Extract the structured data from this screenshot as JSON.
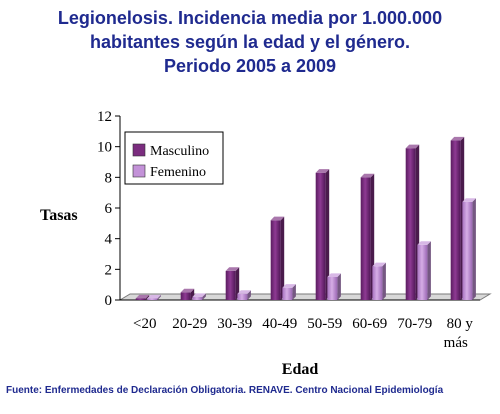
{
  "chart_data": {
    "type": "bar",
    "title": [
      "Legionelosis. Incidencia media por 1.000.000",
      "habitantes según la edad y el género.",
      "Periodo 2005 a 2009"
    ],
    "xlabel": "Edad",
    "ylabel": "Tasas",
    "categories": [
      "<20",
      "20-29",
      "30-39",
      "40-49",
      "50-59",
      "60-69",
      "70-79",
      "80 y más"
    ],
    "series": [
      {
        "name": "Masculino",
        "color": "#7b2d7f",
        "values": [
          0.1,
          0.5,
          1.9,
          5.2,
          8.3,
          8.0,
          9.9,
          10.4
        ]
      },
      {
        "name": "Femenino",
        "color": "#c392d8",
        "values": [
          0.1,
          0.2,
          0.4,
          0.8,
          1.5,
          2.2,
          3.6,
          6.4
        ]
      }
    ],
    "yticks": [
      "0",
      "2",
      "4",
      "6",
      "8",
      "10",
      "12"
    ],
    "ylim": [
      0,
      12
    ],
    "legend": "top-left",
    "grid": false
  },
  "footer": {
    "source": "Fuente: Enfermedades de Declaración Obligatoria. RENAVE. Centro Nacional Epidemiología"
  }
}
